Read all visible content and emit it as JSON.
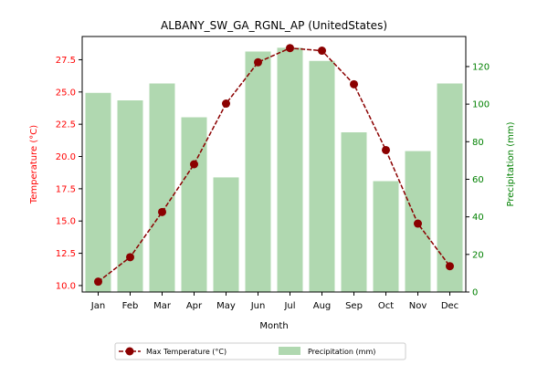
{
  "chart_data": {
    "type": "bar+line",
    "title": "ALBANY_SW_GA_RGNL_AP (UnitedStates)",
    "xlabel": "Month",
    "categories": [
      "Jan",
      "Feb",
      "Mar",
      "Apr",
      "May",
      "Jun",
      "Jul",
      "Aug",
      "Sep",
      "Oct",
      "Nov",
      "Dec"
    ],
    "temperature": {
      "name": "Max Temperature (°C)",
      "axis_label": "Temperature (°C)",
      "values": [
        10.3,
        12.2,
        15.7,
        19.4,
        24.1,
        27.3,
        28.4,
        28.2,
        25.6,
        20.5,
        14.8,
        11.5
      ],
      "ylim": [
        9.5,
        29.3
      ],
      "ticks": [
        "10.0",
        "12.5",
        "15.0",
        "17.5",
        "20.0",
        "22.5",
        "25.0",
        "27.5"
      ],
      "color": "#8b0000",
      "axis_color": "#ff0000"
    },
    "precipitation": {
      "name": "Precipitation (mm)",
      "axis_label": "Precipitation (mm)",
      "values": [
        106,
        102,
        111,
        93,
        61,
        128,
        130,
        123,
        85,
        59,
        75,
        111
      ],
      "ylim": [
        0,
        136
      ],
      "ticks": [
        "0",
        "20",
        "40",
        "60",
        "80",
        "100",
        "120"
      ],
      "color": "#b0d8b0",
      "axis_color": "#008000"
    },
    "legend_placement": "bottom-center",
    "grid": false
  }
}
